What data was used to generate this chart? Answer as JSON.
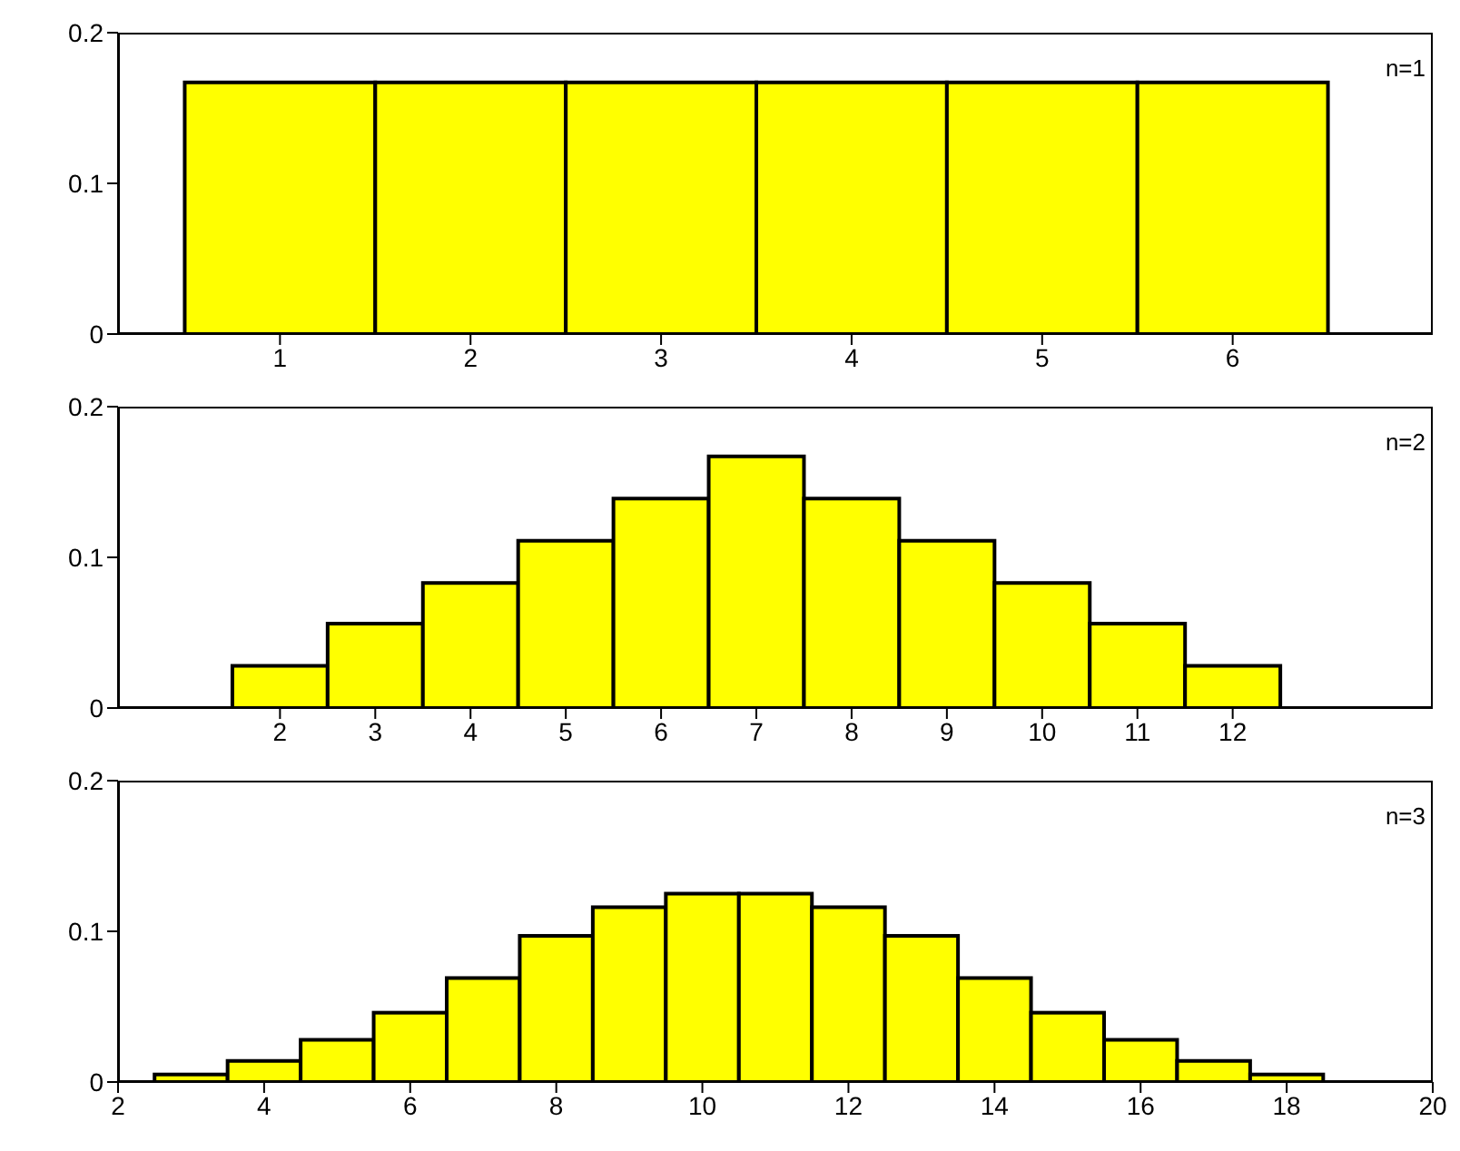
{
  "chart_data": [
    {
      "type": "histogram",
      "bins": [
        0.5,
        1.5,
        2.5,
        3.5,
        4.5,
        5.5,
        6.5
      ],
      "values": [
        0.167,
        0.167,
        0.167,
        0.167,
        0.167,
        0.167
      ],
      "color": "#ffff00",
      "xlim": [
        0.15,
        7.05
      ],
      "xticks": [
        1,
        2,
        3,
        4,
        5,
        6
      ],
      "ylim": [
        0,
        0.2
      ],
      "yticks": [
        0,
        0.1,
        0.2
      ],
      "annotations": [
        "n=1"
      ],
      "grid": false
    },
    {
      "type": "histogram",
      "bins": [
        1.5,
        2.5,
        3.5,
        4.5,
        5.5,
        6.5,
        7.5,
        8.5,
        9.5,
        10.5,
        11.5,
        12.5
      ],
      "values": [
        0.028,
        0.056,
        0.083,
        0.111,
        0.139,
        0.167,
        0.139,
        0.111,
        0.083,
        0.056,
        0.028
      ],
      "color": "#ffff00",
      "xlim": [
        0.3,
        14.1
      ],
      "xticks": [
        2,
        3,
        4,
        5,
        6,
        7,
        8,
        9,
        10,
        11,
        12
      ],
      "ylim": [
        0,
        0.2
      ],
      "yticks": [
        0,
        0.1,
        0.2
      ],
      "annotations": [
        "n=2"
      ],
      "grid": false
    },
    {
      "type": "histogram",
      "bins": [
        2.5,
        3.5,
        4.5,
        5.5,
        6.5,
        7.5,
        8.5,
        9.5,
        10.5,
        11.5,
        12.5,
        13.5,
        14.5,
        15.5,
        16.5,
        17.5,
        18.5
      ],
      "values": [
        0.005,
        0.014,
        0.028,
        0.046,
        0.069,
        0.097,
        0.116,
        0.125,
        0.125,
        0.116,
        0.097,
        0.069,
        0.046,
        0.028,
        0.014,
        0.005
      ],
      "color": "#ffff00",
      "xlim": [
        2,
        20
      ],
      "xticks": [
        2,
        4,
        6,
        8,
        10,
        12,
        14,
        16,
        18,
        20
      ],
      "ylim": [
        0,
        0.2
      ],
      "yticks": [
        0,
        0.1,
        0.2
      ],
      "annotations": [
        "n=3"
      ],
      "grid": false
    }
  ]
}
